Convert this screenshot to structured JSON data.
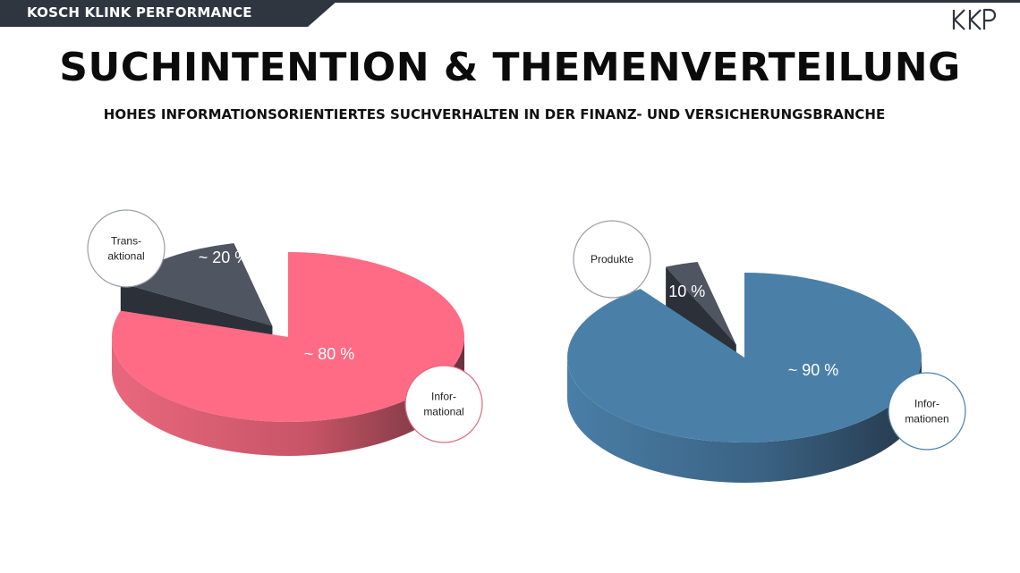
{
  "brand": {
    "label": "KOSCH KLINK PERFORMANCE",
    "logo_text": "KKP"
  },
  "title": "SUCHINTENTION & THEMENVERTEILUNG",
  "subtitle": "HOHES INFORMATIONSORIENTIERTES SUCHVERHALTEN IN DER FINANZ- UND VERSICHERUNGSBRANCHE",
  "colors": {
    "dark": "#2f3640",
    "pink": "#ff6b84",
    "blue": "#4a80a8",
    "slice_dark": "#4f5561"
  },
  "chart_data": [
    {
      "type": "pie",
      "title": "",
      "slices": [
        {
          "label": "Informational",
          "value": 80,
          "value_label": "~ 80 %",
          "callout": [
            "Infor-",
            "mational"
          ],
          "color": "#ff6b84"
        },
        {
          "label": "Transaktional",
          "value": 20,
          "value_label": "~ 20 %",
          "callout": [
            "Trans-",
            "aktional"
          ],
          "color": "#4f5561"
        }
      ]
    },
    {
      "type": "pie",
      "title": "",
      "slices": [
        {
          "label": "Informationen",
          "value": 90,
          "value_label": "~ 90 %",
          "callout": [
            "Infor-",
            "mationen"
          ],
          "color": "#4a80a8"
        },
        {
          "label": "Produkte",
          "value": 10,
          "value_label": "~ 10 %",
          "callout": [
            "Produkte"
          ],
          "color": "#4f5561"
        }
      ]
    }
  ]
}
